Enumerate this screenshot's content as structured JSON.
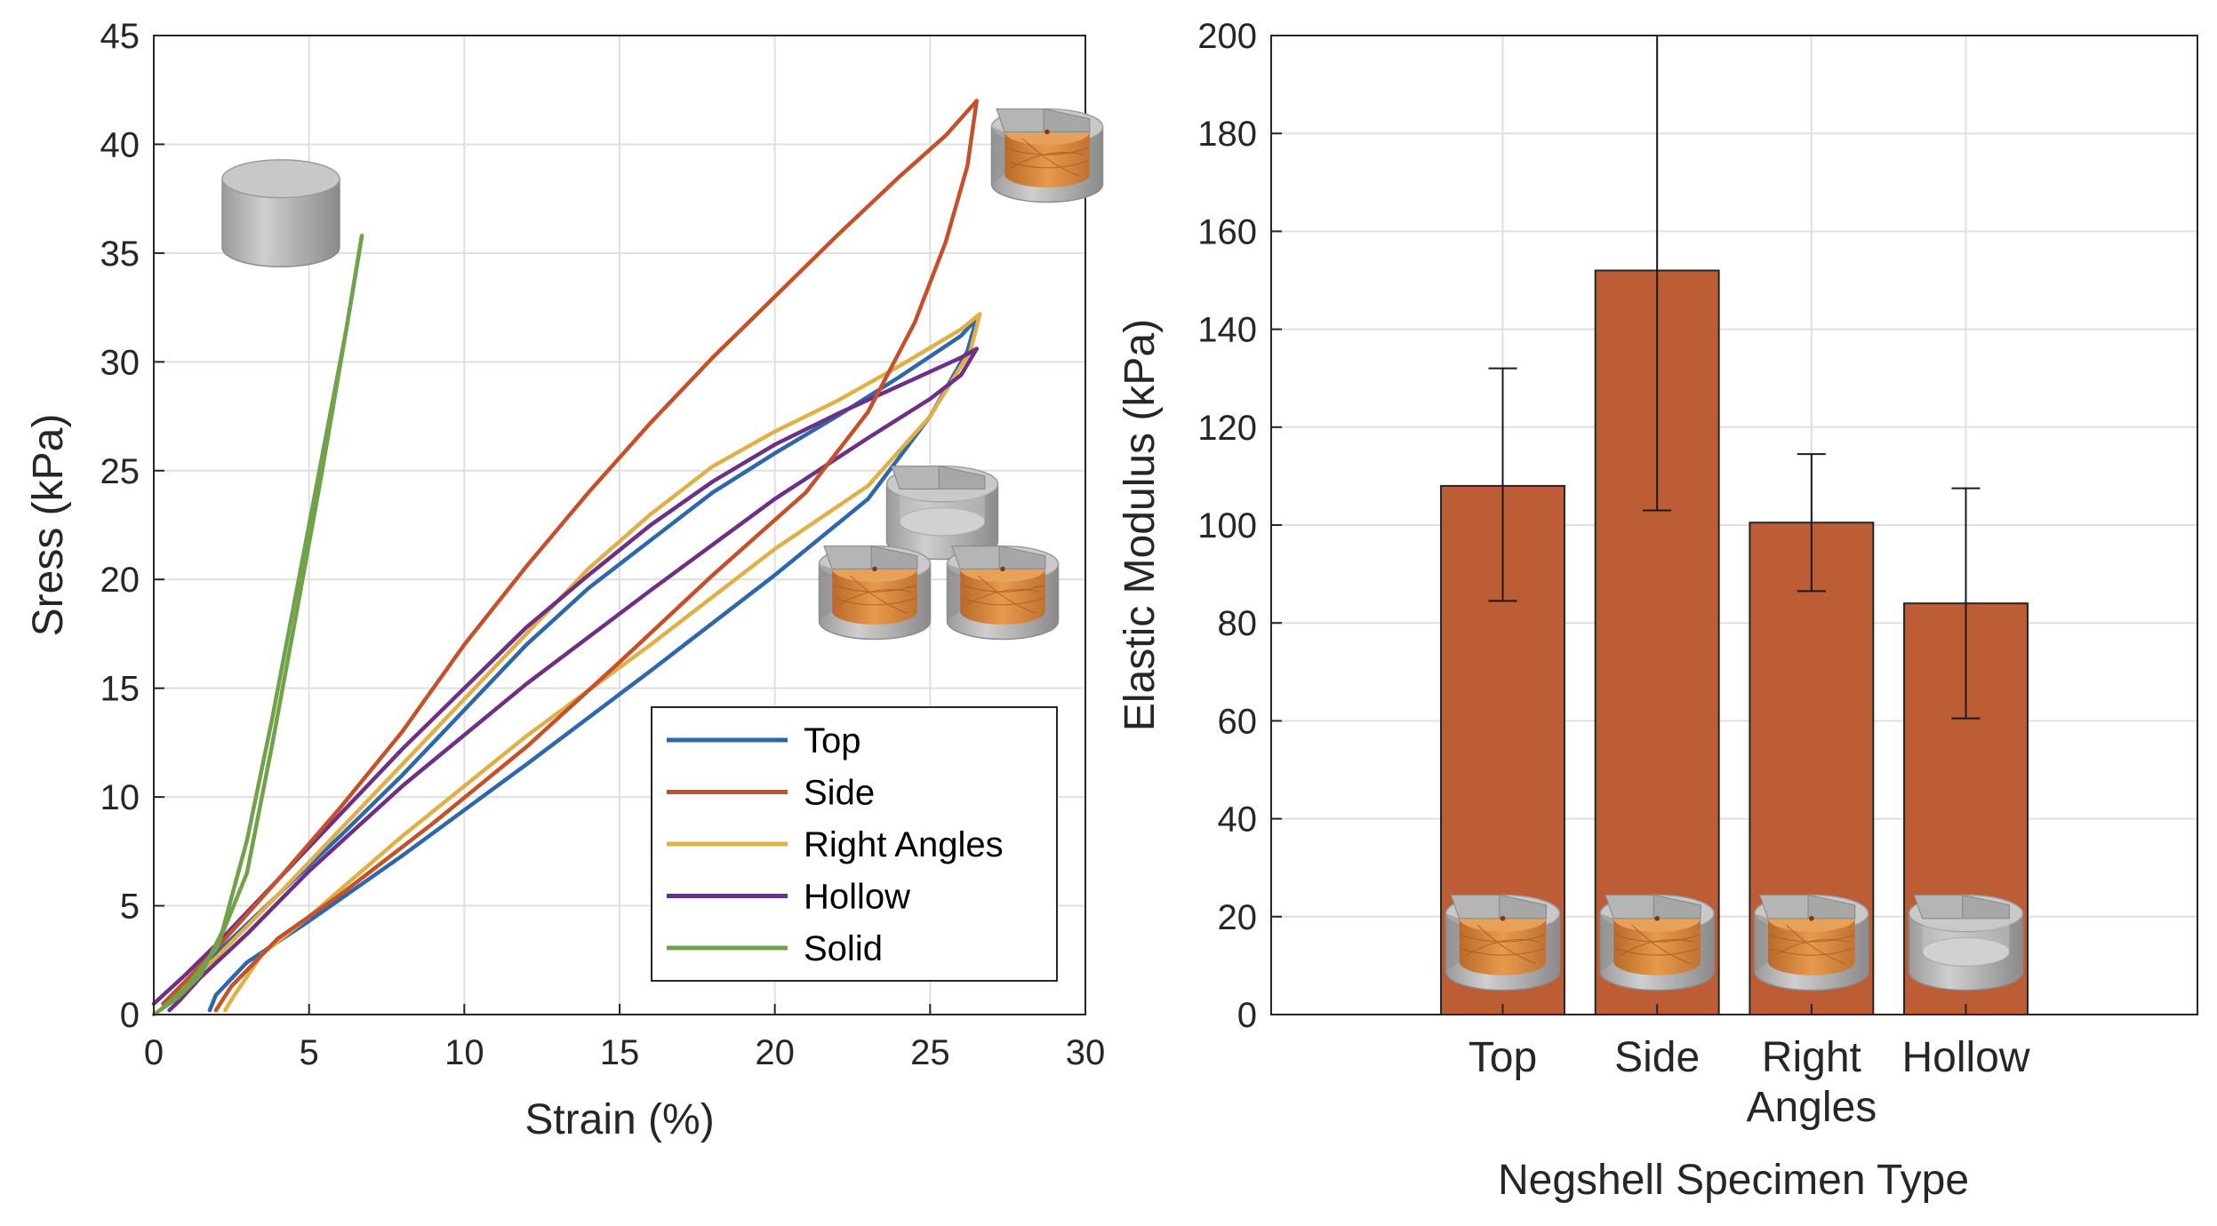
{
  "chart_data": [
    {
      "type": "line",
      "xlabel": "Strain (%)",
      "ylabel": "Sress (kPa)",
      "xlim": [
        0,
        30
      ],
      "ylim": [
        0,
        45
      ],
      "xticks": [
        "0",
        "5",
        "10",
        "15",
        "20",
        "25",
        "30"
      ],
      "yticks": [
        "0",
        "5",
        "10",
        "15",
        "20",
        "25",
        "30",
        "35",
        "40",
        "45"
      ],
      "grid": true,
      "legend_position": "bottom-right",
      "colors": {
        "Top": "#2e68ac",
        "Side": "#c4512a",
        "Right Angles": "#e0b047",
        "Hollow": "#6e2f86",
        "Solid": "#71a24a"
      },
      "icons": [
        "solid-cylinder-icon",
        "side-specimen-icon",
        "three-specimens-icon"
      ],
      "series": [
        {
          "name": "Top",
          "loading": [
            [
              0.3,
              0.5
            ],
            [
              1,
              1.5
            ],
            [
              2,
              2.8
            ],
            [
              4,
              5.5
            ],
            [
              6,
              8.2
            ],
            [
              8,
              11
            ],
            [
              10,
              14
            ],
            [
              12,
              17
            ],
            [
              14,
              19.6
            ],
            [
              16,
              21.8
            ],
            [
              18,
              24
            ],
            [
              20,
              25.8
            ],
            [
              22,
              27.5
            ],
            [
              24,
              29.3
            ],
            [
              26,
              31.2
            ],
            [
              26.5,
              32
            ]
          ],
          "unloading": [
            [
              26.5,
              32
            ],
            [
              26.2,
              30.5
            ],
            [
              25,
              27.5
            ],
            [
              23,
              23.7
            ],
            [
              20,
              20.2
            ],
            [
              16,
              15.8
            ],
            [
              12,
              11.5
            ],
            [
              8,
              7.3
            ],
            [
              5,
              4.3
            ],
            [
              3,
              2.4
            ],
            [
              2,
              0.9
            ],
            [
              1.8,
              0.2
            ]
          ]
        },
        {
          "name": "Side",
          "loading": [
            [
              0.3,
              0.5
            ],
            [
              1,
              1.5
            ],
            [
              2,
              3
            ],
            [
              4,
              6.2
            ],
            [
              6,
              9.5
            ],
            [
              8,
              13
            ],
            [
              10,
              17
            ],
            [
              12,
              20.6
            ],
            [
              14,
              24
            ],
            [
              16,
              27.2
            ],
            [
              18,
              30.2
            ],
            [
              20,
              33
            ],
            [
              22,
              35.8
            ],
            [
              24,
              38.5
            ],
            [
              25.5,
              40.4
            ],
            [
              26.5,
              42
            ]
          ],
          "unloading": [
            [
              26.5,
              42
            ],
            [
              26.2,
              39
            ],
            [
              25.5,
              35.5
            ],
            [
              24.5,
              31.8
            ],
            [
              23,
              27.7
            ],
            [
              21,
              24
            ],
            [
              18,
              20.2
            ],
            [
              15,
              16.2
            ],
            [
              12,
              12.3
            ],
            [
              9,
              8.8
            ],
            [
              6,
              5.5
            ],
            [
              4,
              3.5
            ],
            [
              2.5,
              1.3
            ],
            [
              2,
              0.2
            ]
          ]
        },
        {
          "name": "Right Angles",
          "loading": [
            [
              0.3,
              0.5
            ],
            [
              1,
              1.4
            ],
            [
              2,
              2.6
            ],
            [
              4,
              5.5
            ],
            [
              6,
              8.5
            ],
            [
              8,
              11.5
            ],
            [
              10,
              14.5
            ],
            [
              12,
              17.5
            ],
            [
              14,
              20.5
            ],
            [
              16,
              23
            ],
            [
              18,
              25.2
            ],
            [
              20,
              26.8
            ],
            [
              22,
              28.2
            ],
            [
              24,
              29.8
            ],
            [
              26,
              31.5
            ],
            [
              26.6,
              32.2
            ]
          ],
          "unloading": [
            [
              26.6,
              32.2
            ],
            [
              26.3,
              30.5
            ],
            [
              25,
              27.5
            ],
            [
              23,
              24.3
            ],
            [
              20,
              21.4
            ],
            [
              16,
              17
            ],
            [
              12,
              12.8
            ],
            [
              8,
              8.2
            ],
            [
              5,
              4.5
            ],
            [
              3.5,
              2.8
            ],
            [
              2.6,
              0.9
            ],
            [
              2.3,
              0.2
            ]
          ]
        },
        {
          "name": "Hollow",
          "loading": [
            [
              0,
              0.5
            ],
            [
              1,
              1.8
            ],
            [
              2,
              3.2
            ],
            [
              4,
              6.2
            ],
            [
              6,
              9.2
            ],
            [
              8,
              12.2
            ],
            [
              10,
              15
            ],
            [
              12,
              17.8
            ],
            [
              14,
              20.2
            ],
            [
              16,
              22.5
            ],
            [
              18,
              24.5
            ],
            [
              20,
              26.2
            ],
            [
              22,
              27.6
            ],
            [
              24,
              28.9
            ],
            [
              26,
              30.2
            ],
            [
              26.5,
              30.6
            ]
          ],
          "unloading": [
            [
              26.5,
              30.6
            ],
            [
              26,
              29.4
            ],
            [
              25,
              28.3
            ],
            [
              23,
              26.5
            ],
            [
              20,
              23.7
            ],
            [
              16,
              19.5
            ],
            [
              12,
              15.2
            ],
            [
              8,
              10.5
            ],
            [
              5,
              6.6
            ],
            [
              3,
              3.7
            ],
            [
              1.5,
              1.7
            ],
            [
              0.8,
              0.6
            ],
            [
              0.5,
              0.2
            ]
          ]
        },
        {
          "name": "Solid",
          "loading": [
            [
              0,
              0
            ],
            [
              0.8,
              0.8
            ],
            [
              1.5,
              1.8
            ],
            [
              2.2,
              3.8
            ],
            [
              3,
              8
            ],
            [
              3.8,
              13.5
            ],
            [
              4.6,
              19.5
            ],
            [
              5.4,
              25.5
            ],
            [
              6.2,
              31.5
            ],
            [
              6.7,
              35.8
            ]
          ],
          "unloading": [
            [
              6.7,
              35.8
            ],
            [
              6.2,
              31.5
            ],
            [
              5.4,
              24.8
            ],
            [
              4.6,
              18.5
            ],
            [
              3.8,
              12.3
            ],
            [
              3,
              6.5
            ],
            [
              2,
              3
            ],
            [
              1,
              1.2
            ],
            [
              0.2,
              0.2
            ]
          ]
        }
      ]
    },
    {
      "type": "bar",
      "xlabel": "Negshell Specimen Type",
      "ylabel": "Elastic Modulus (kPa)",
      "ylim": [
        0,
        200
      ],
      "yticks": [
        "0",
        "20",
        "40",
        "60",
        "80",
        "100",
        "120",
        "140",
        "160",
        "180",
        "200"
      ],
      "categories": [
        [
          "Top"
        ],
        [
          "Side"
        ],
        [
          "Right",
          "Angles"
        ],
        [
          "Hollow"
        ]
      ],
      "values": [
        108,
        152,
        100.5,
        84
      ],
      "error_low": [
        84.5,
        103,
        86.5,
        60.5
      ],
      "error_high": [
        132,
        200,
        114.5,
        107.5
      ],
      "grid": true,
      "bar_color": "#bc5d35",
      "icons": [
        "top-specimen-icon",
        "side-specimen-icon",
        "right-angles-specimen-icon",
        "hollow-specimen-icon"
      ]
    }
  ]
}
